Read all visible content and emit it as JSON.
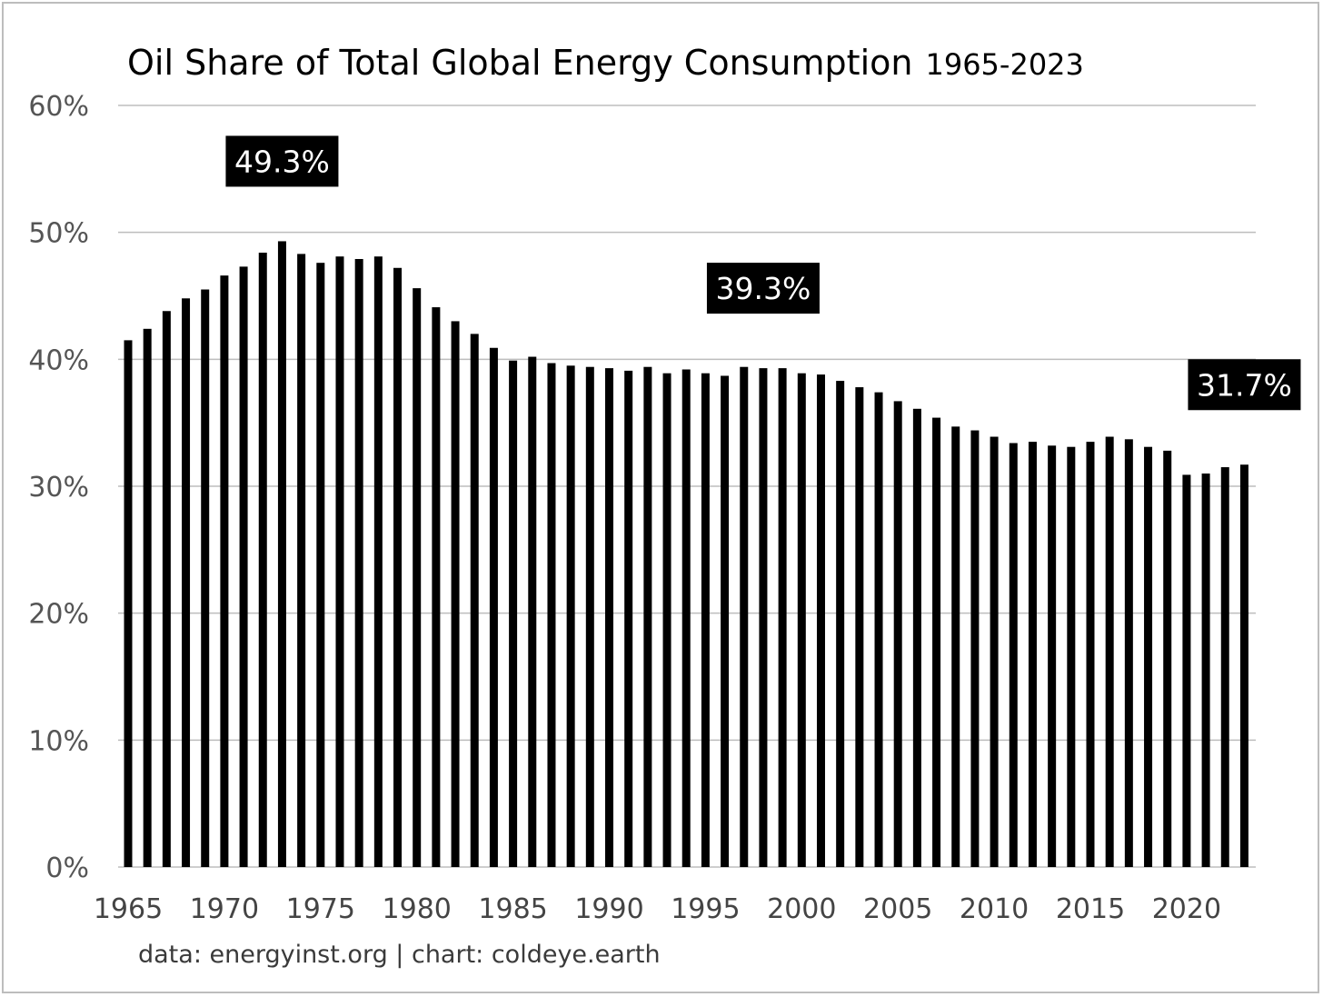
{
  "chart_data": {
    "type": "bar",
    "title": "Oil Share of Total Global Energy Consumption",
    "subtitle": "1965-2023",
    "source": "data: energyinst.org | chart: coldeye.earth",
    "xlabel": "",
    "ylabel": "",
    "ylim": [
      0,
      60
    ],
    "yticks": [
      "0%",
      "10%",
      "20%",
      "30%",
      "40%",
      "50%",
      "60%"
    ],
    "xticks": [
      "1965",
      "1970",
      "1975",
      "1980",
      "1985",
      "1990",
      "1995",
      "2000",
      "2005",
      "2010",
      "2015",
      "2020"
    ],
    "grid": true,
    "legend": "none",
    "bar_color": "#000000",
    "categories": [
      1965,
      1966,
      1967,
      1968,
      1969,
      1970,
      1971,
      1972,
      1973,
      1974,
      1975,
      1976,
      1977,
      1978,
      1979,
      1980,
      1981,
      1982,
      1983,
      1984,
      1985,
      1986,
      1987,
      1988,
      1989,
      1990,
      1991,
      1992,
      1993,
      1994,
      1995,
      1996,
      1997,
      1998,
      1999,
      2000,
      2001,
      2002,
      2003,
      2004,
      2005,
      2006,
      2007,
      2008,
      2009,
      2010,
      2011,
      2012,
      2013,
      2014,
      2015,
      2016,
      2017,
      2018,
      2019,
      2020,
      2021,
      2022,
      2023
    ],
    "values": [
      41.5,
      42.4,
      43.8,
      44.8,
      45.5,
      46.6,
      47.3,
      48.4,
      49.3,
      48.3,
      47.6,
      48.1,
      47.9,
      48.1,
      47.2,
      45.6,
      44.1,
      43.0,
      42.0,
      40.9,
      39.9,
      40.2,
      39.7,
      39.5,
      39.4,
      39.3,
      39.1,
      39.4,
      38.9,
      39.2,
      38.9,
      38.7,
      39.4,
      39.3,
      39.3,
      38.9,
      38.8,
      38.3,
      37.8,
      37.4,
      36.7,
      36.1,
      35.4,
      34.7,
      34.4,
      33.9,
      33.4,
      33.5,
      33.2,
      33.1,
      33.5,
      33.9,
      33.7,
      33.1,
      32.8,
      30.9,
      31.0,
      31.5,
      31.7
    ],
    "annotations": [
      {
        "category": 1973,
        "label": "49.3%"
      },
      {
        "category": 1998,
        "label": "39.3%"
      },
      {
        "category": 2023,
        "label": "31.7%"
      }
    ]
  }
}
